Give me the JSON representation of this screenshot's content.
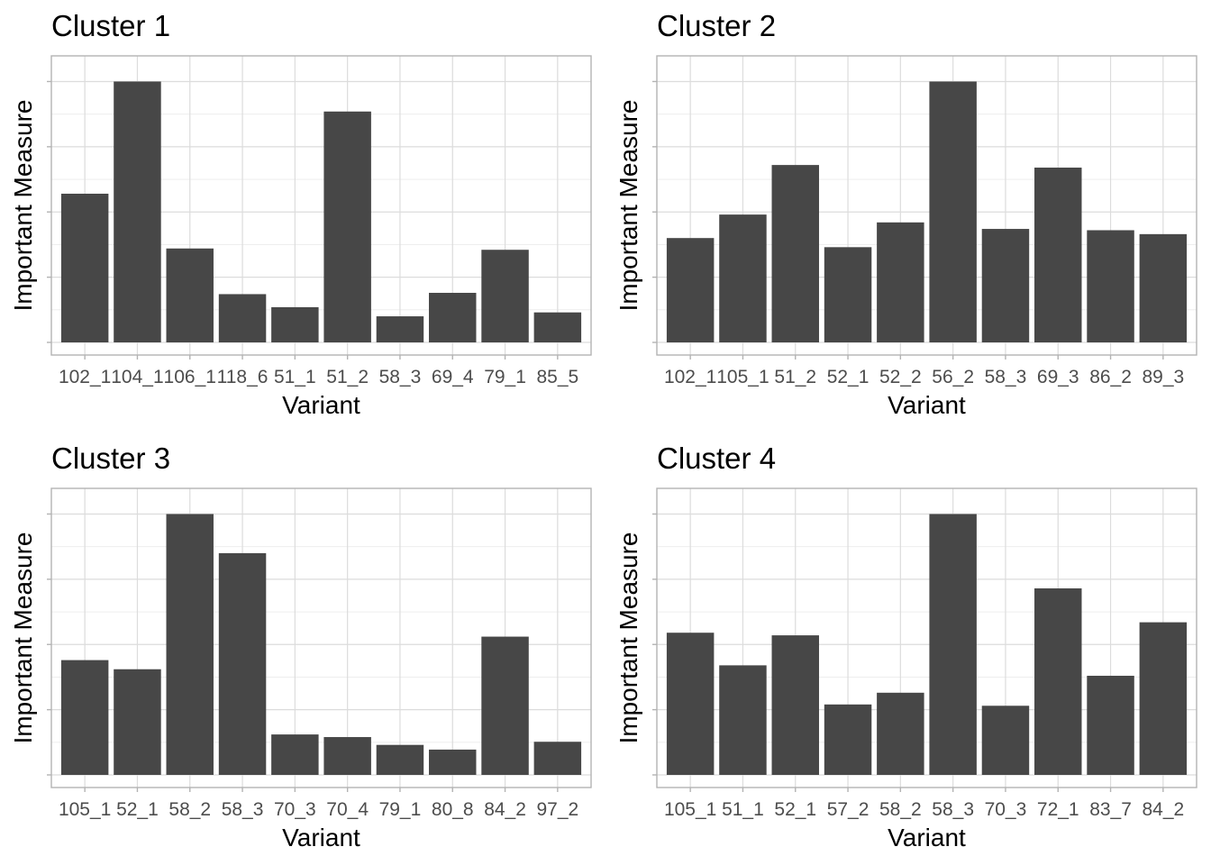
{
  "chart_data": [
    {
      "type": "bar",
      "title": "Cluster 1",
      "xlabel": "Variant",
      "ylabel": "Important Measure",
      "categories": [
        "102_1",
        "104_1",
        "106_1",
        "118_6",
        "51_1",
        "51_2",
        "58_3",
        "69_4",
        "79_1",
        "85_5"
      ],
      "values": [
        0.57,
        1.0,
        0.36,
        0.185,
        0.135,
        0.885,
        0.1,
        0.19,
        0.355,
        0.115
      ],
      "ylim": [
        0,
        1.05
      ],
      "y_tick_labels_shown": false,
      "grid": true
    },
    {
      "type": "bar",
      "title": "Cluster 2",
      "xlabel": "Variant",
      "ylabel": "Important Measure",
      "categories": [
        "102_1",
        "105_1",
        "51_2",
        "52_1",
        "52_2",
        "56_2",
        "58_3",
        "69_3",
        "86_2",
        "89_3"
      ],
      "values": [
        0.4,
        0.49,
        0.68,
        0.365,
        0.46,
        1.0,
        0.435,
        0.67,
        0.43,
        0.415
      ],
      "ylim": [
        0,
        1.05
      ],
      "y_tick_labels_shown": false,
      "grid": true
    },
    {
      "type": "bar",
      "title": "Cluster 3",
      "xlabel": "Variant",
      "ylabel": "Important Measure",
      "categories": [
        "105_1",
        "52_1",
        "58_2",
        "58_3",
        "70_3",
        "70_4",
        "79_1",
        "80_8",
        "84_2",
        "97_2"
      ],
      "values": [
        0.44,
        0.405,
        1.0,
        0.85,
        0.155,
        0.145,
        0.115,
        0.097,
        0.53,
        0.127
      ],
      "ylim": [
        0,
        1.05
      ],
      "y_tick_labels_shown": false,
      "grid": true
    },
    {
      "type": "bar",
      "title": "Cluster 4",
      "xlabel": "Variant",
      "ylabel": "Important Measure",
      "categories": [
        "105_1",
        "51_1",
        "52_1",
        "57_2",
        "58_2",
        "58_3",
        "70_3",
        "72_1",
        "83_7",
        "84_2"
      ],
      "values": [
        0.545,
        0.42,
        0.535,
        0.27,
        0.315,
        1.0,
        0.265,
        0.715,
        0.38,
        0.585
      ],
      "ylim": [
        0,
        1.05
      ],
      "y_tick_labels_shown": false,
      "grid": true
    }
  ]
}
